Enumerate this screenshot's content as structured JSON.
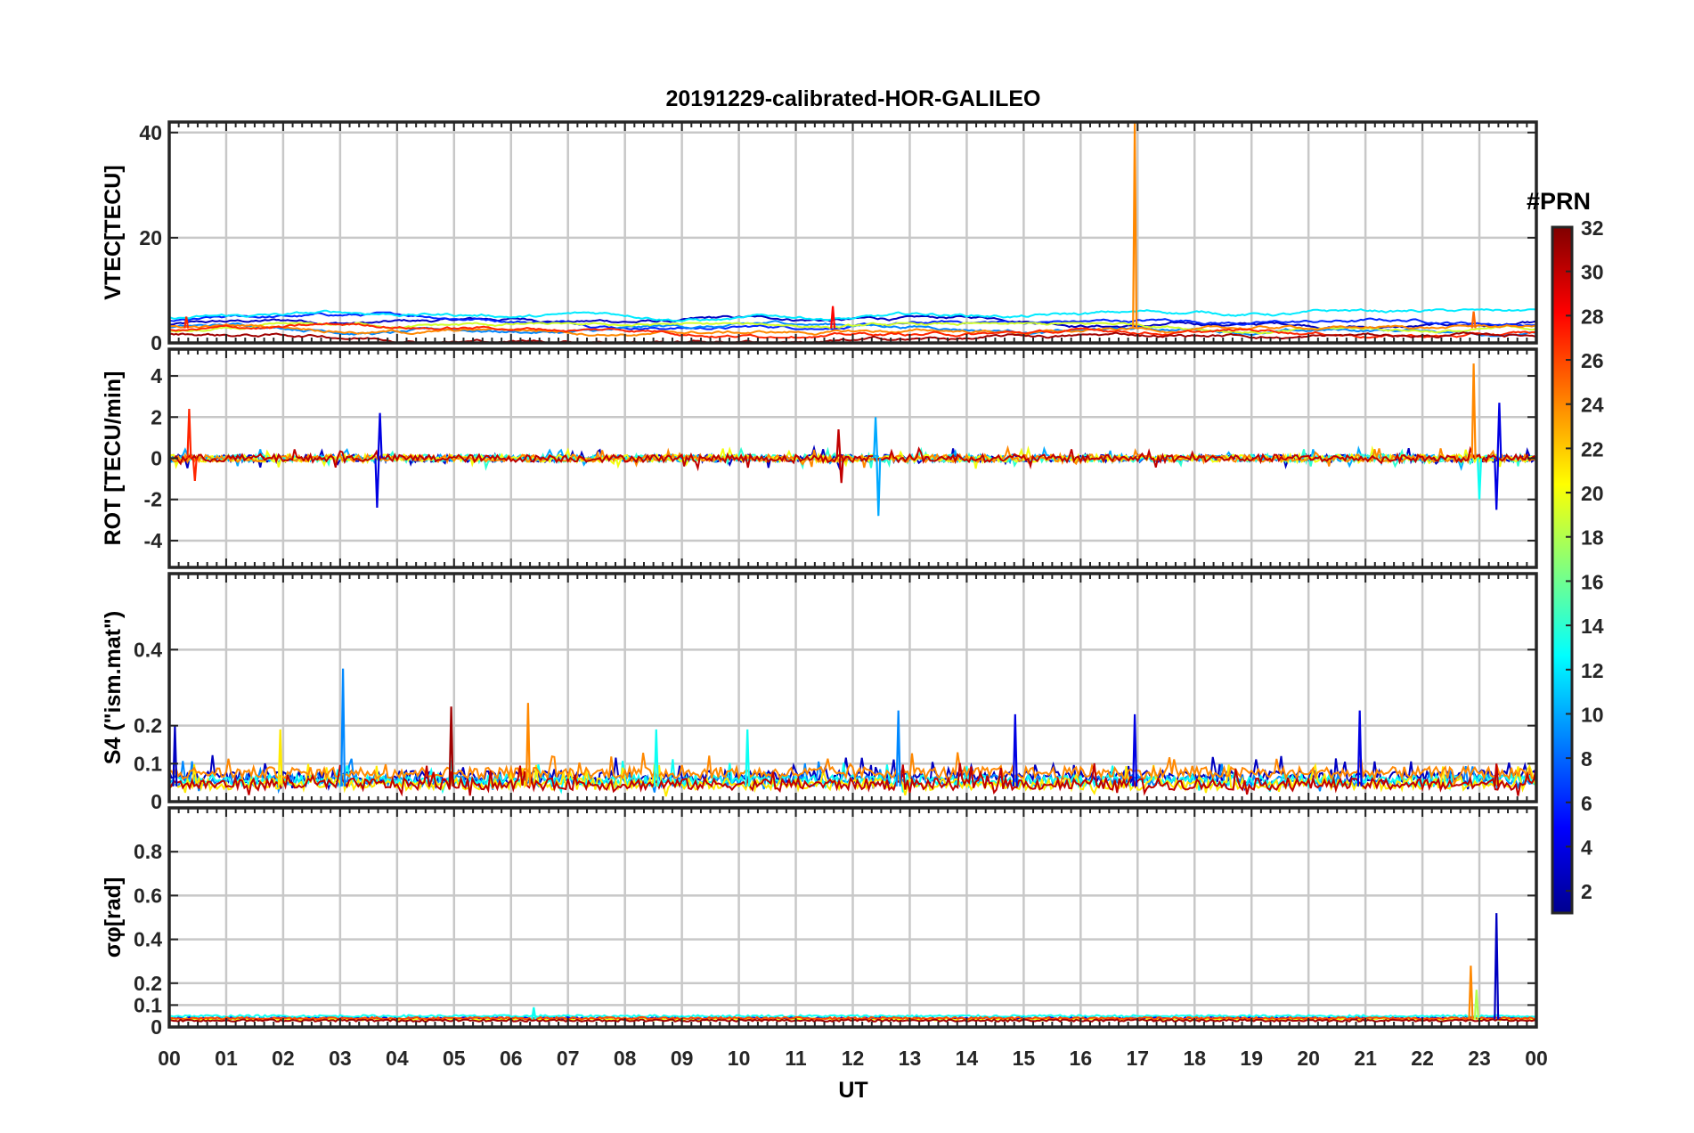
{
  "figure": {
    "title": "20191229-calibrated-HOR-GALILEO",
    "xlabel": "UT",
    "x_ticks": [
      "00",
      "01",
      "02",
      "03",
      "04",
      "05",
      "06",
      "07",
      "08",
      "09",
      "10",
      "11",
      "12",
      "13",
      "14",
      "15",
      "16",
      "17",
      "18",
      "19",
      "20",
      "21",
      "22",
      "23",
      "00"
    ],
    "colorbar": {
      "title": "#PRN",
      "range": [
        1,
        32
      ],
      "ticks": [
        "2",
        "4",
        "6",
        "8",
        "10",
        "12",
        "14",
        "16",
        "18",
        "20",
        "22",
        "24",
        "26",
        "28",
        "30",
        "32"
      ],
      "colormap": "jet"
    }
  },
  "chart_data": [
    {
      "type": "line",
      "name": "vtec",
      "ylabel": "VTEC[TECU]",
      "ylim": [
        0,
        42
      ],
      "xlim": [
        0,
        24
      ],
      "yticks": [
        "0",
        "20",
        "40"
      ],
      "ytick_values": [
        0,
        20,
        40
      ],
      "grid": true,
      "baseline": 2.8,
      "noise": 0.6,
      "spikes": [
        {
          "x": 16.95,
          "y": 42,
          "prn": 24
        },
        {
          "x": 11.65,
          "y": 7,
          "prn": 28
        },
        {
          "x": 0.3,
          "y": 5,
          "prn": 27
        },
        {
          "x": 22.9,
          "y": 6,
          "prn": 25
        }
      ],
      "series": [
        {
          "prn": 3,
          "level": 3.5
        },
        {
          "prn": 6,
          "level": 4.2
        },
        {
          "prn": 9,
          "level": 2.9
        },
        {
          "prn": 12,
          "level": 4.8
        },
        {
          "prn": 19,
          "level": 2.2
        },
        {
          "prn": 24,
          "level": 3.0
        },
        {
          "prn": 27,
          "level": 2.6
        },
        {
          "prn": 31,
          "level": 1.6
        }
      ]
    },
    {
      "type": "line",
      "name": "rot",
      "ylabel": "ROT [TECU/min]",
      "ylim": [
        -5.3,
        5.3
      ],
      "xlim": [
        0,
        24
      ],
      "yticks": [
        "-4",
        "-2",
        "0",
        "2",
        "4"
      ],
      "ytick_values": [
        -4,
        -2,
        0,
        2,
        4
      ],
      "grid": true,
      "baseline": 0,
      "noise": 0.25,
      "spikes": [
        {
          "x": 0.35,
          "y": 2.4,
          "prn": 27
        },
        {
          "x": 0.45,
          "y": -1.1,
          "prn": 27
        },
        {
          "x": 3.65,
          "y": -2.4,
          "prn": 4
        },
        {
          "x": 3.7,
          "y": 2.2,
          "prn": 4
        },
        {
          "x": 11.75,
          "y": 1.4,
          "prn": 30
        },
        {
          "x": 11.8,
          "y": -1.2,
          "prn": 30
        },
        {
          "x": 12.4,
          "y": 2.0,
          "prn": 10
        },
        {
          "x": 12.45,
          "y": -2.8,
          "prn": 10
        },
        {
          "x": 22.9,
          "y": 4.6,
          "prn": 24
        },
        {
          "x": 23.3,
          "y": -2.5,
          "prn": 4
        },
        {
          "x": 23.35,
          "y": 2.7,
          "prn": 4
        },
        {
          "x": 23.0,
          "y": -2.0,
          "prn": 13
        }
      ],
      "series": [
        {
          "prn": 3,
          "level": 0
        },
        {
          "prn": 10,
          "level": 0
        },
        {
          "prn": 14,
          "level": 0
        },
        {
          "prn": 20,
          "level": 0
        },
        {
          "prn": 24,
          "level": 0
        },
        {
          "prn": 30,
          "level": 0
        }
      ]
    },
    {
      "type": "line",
      "name": "s4",
      "ylabel": "S4 (\"ism.mat\")",
      "ylim": [
        0,
        0.6
      ],
      "xlim": [
        0,
        24
      ],
      "yticks": [
        "0",
        "0.1",
        "0.2",
        "0.4"
      ],
      "ytick_values": [
        0,
        0.1,
        0.2,
        0.4
      ],
      "grid": true,
      "baseline": 0.04,
      "noise": 0.03,
      "spikes": [
        {
          "x": 3.05,
          "y": 0.35,
          "prn": 9
        },
        {
          "x": 4.95,
          "y": 0.25,
          "prn": 31
        },
        {
          "x": 6.3,
          "y": 0.26,
          "prn": 24
        },
        {
          "x": 12.8,
          "y": 0.24,
          "prn": 9
        },
        {
          "x": 14.85,
          "y": 0.23,
          "prn": 4
        },
        {
          "x": 16.95,
          "y": 0.23,
          "prn": 4
        },
        {
          "x": 20.9,
          "y": 0.24,
          "prn": 4
        },
        {
          "x": 0.1,
          "y": 0.2,
          "prn": 3
        },
        {
          "x": 1.95,
          "y": 0.19,
          "prn": 21
        },
        {
          "x": 10.15,
          "y": 0.19,
          "prn": 13
        },
        {
          "x": 8.55,
          "y": 0.19,
          "prn": 13
        },
        {
          "x": 23.3,
          "y": 0.1,
          "prn": 30
        }
      ],
      "series": [
        {
          "prn": 3,
          "level": 0.06
        },
        {
          "prn": 9,
          "level": 0.05
        },
        {
          "prn": 13,
          "level": 0.05
        },
        {
          "prn": 21,
          "level": 0.04
        },
        {
          "prn": 24,
          "level": 0.07
        },
        {
          "prn": 30,
          "level": 0.04
        }
      ]
    },
    {
      "type": "line",
      "name": "sigma_phi",
      "ylabel": "σφ[rad]",
      "ylim": [
        0,
        1.0
      ],
      "xlim": [
        0,
        24
      ],
      "yticks": [
        "0",
        "0.1",
        "0.2",
        "0.4",
        "0.6",
        "0.8"
      ],
      "ytick_values": [
        0,
        0.1,
        0.2,
        0.4,
        0.6,
        0.8
      ],
      "grid": true,
      "baseline": 0.035,
      "noise": 0.01,
      "spikes": [
        {
          "x": 23.3,
          "y": 0.52,
          "prn": 3
        },
        {
          "x": 22.85,
          "y": 0.28,
          "prn": 24
        },
        {
          "x": 22.95,
          "y": 0.17,
          "prn": 18
        },
        {
          "x": 6.4,
          "y": 0.09,
          "prn": 13
        }
      ],
      "series": [
        {
          "prn": 4,
          "level": 0.04
        },
        {
          "prn": 13,
          "level": 0.05
        },
        {
          "prn": 20,
          "level": 0.035
        },
        {
          "prn": 26,
          "level": 0.04
        },
        {
          "prn": 31,
          "level": 0.03
        }
      ]
    }
  ]
}
